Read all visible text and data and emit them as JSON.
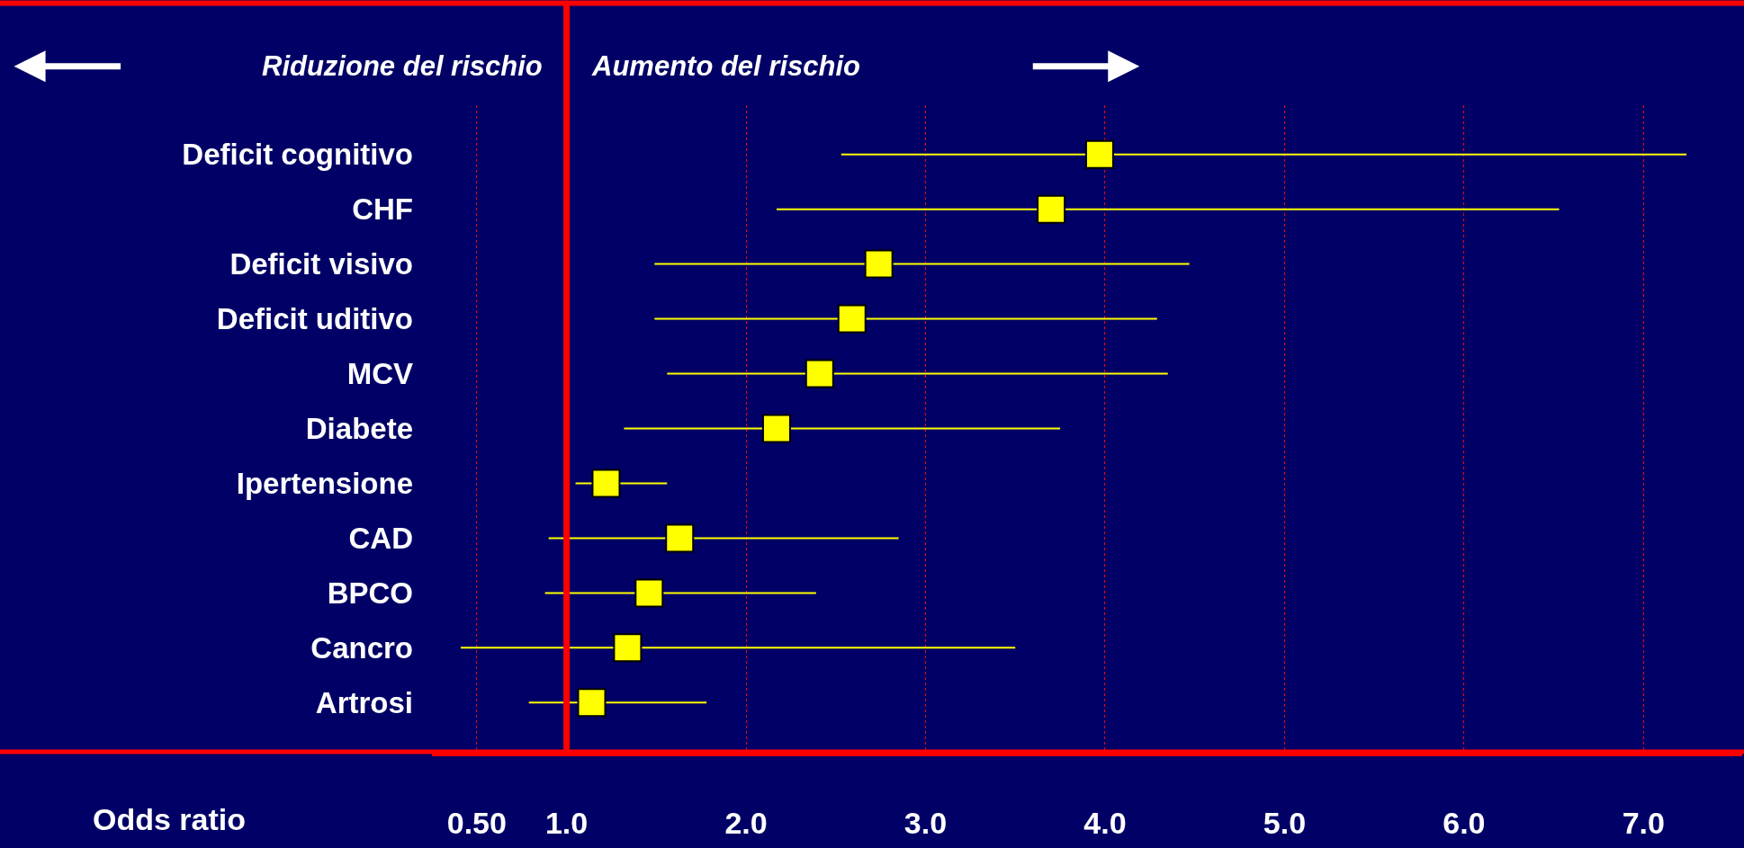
{
  "chart_data": {
    "type": "scatter",
    "xlabel": "Odds ratio",
    "annotations": [
      "Riduzione del rischio",
      "Aumento del rischio"
    ],
    "categories": [
      "Deficit cognitivo",
      "CHF",
      "Deficit visivo",
      "Deficit uditivo",
      "MCV",
      "Diabete",
      "Ipertensione",
      "CAD",
      "BPCO",
      "Cancro",
      "Artrosi"
    ],
    "series": [
      {
        "color": "#ffff00",
        "values": [
          3.97,
          3.7,
          2.74,
          2.59,
          2.41,
          2.17,
          1.22,
          1.63,
          1.46,
          1.34,
          1.14
        ],
        "errors": [
          [
            2.53,
            7.24
          ],
          [
            2.17,
            6.53
          ],
          [
            1.49,
            4.47
          ],
          [
            1.49,
            4.29
          ],
          [
            1.56,
            4.35
          ],
          [
            1.32,
            3.75
          ],
          [
            1.05,
            1.56
          ],
          [
            0.9,
            2.85
          ],
          [
            0.88,
            2.39
          ],
          [
            0.41,
            3.5
          ],
          [
            0.79,
            1.78
          ]
        ]
      }
    ],
    "orientation": "horizontal",
    "marker": "square",
    "xlim": [
      0.25,
      7.55
    ],
    "xticks": [
      {
        "value": 0.5,
        "label": "0.50"
      },
      {
        "value": 1,
        "label": "1.0"
      },
      {
        "value": 2,
        "label": "2.0"
      },
      {
        "value": 3,
        "label": "3.0"
      },
      {
        "value": 4,
        "label": "4.0"
      },
      {
        "value": 5,
        "label": "5.0"
      },
      {
        "value": 6,
        "label": "6.0"
      },
      {
        "value": 7,
        "label": "7.0"
      }
    ],
    "grid": "x",
    "ref_lines": [
      {
        "axis": "x",
        "value": 1,
        "color": "#ff0000"
      }
    ]
  }
}
